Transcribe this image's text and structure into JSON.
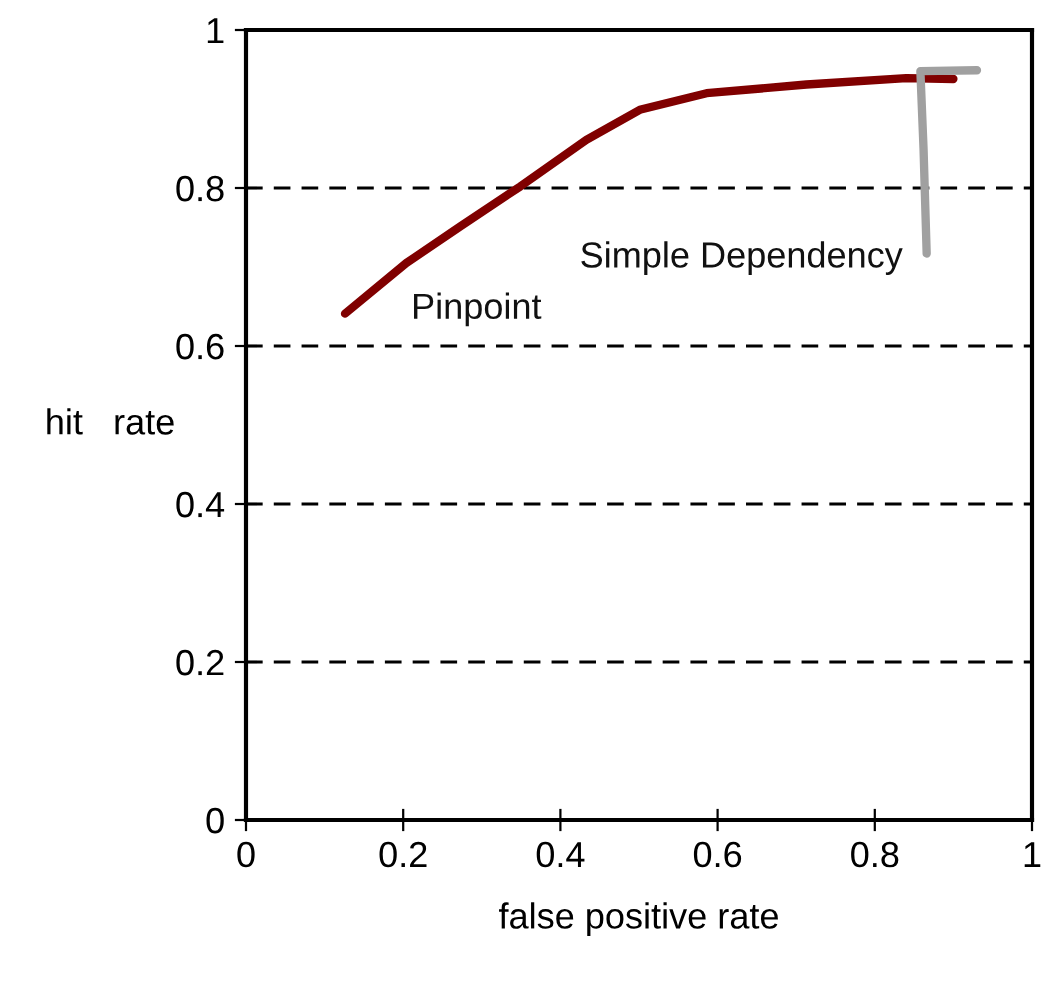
{
  "chart_data": {
    "type": "line",
    "xlabel": "false positive rate",
    "ylabel": "hit   rate",
    "xlim": [
      0,
      1
    ],
    "ylim": [
      0,
      1
    ],
    "xticks": [
      0,
      0.2,
      0.4,
      0.6,
      0.8,
      1
    ],
    "yticks": [
      0,
      0.2,
      0.4,
      0.6,
      0.8,
      1
    ],
    "grid": "y",
    "series": [
      {
        "name": "Pinpoint",
        "color": "#800000",
        "x": [
          0.126,
          0.204,
          0.272,
          0.349,
          0.433,
          0.501,
          0.586,
          0.713,
          0.84,
          0.9
        ],
        "values": [
          0.641,
          0.705,
          0.751,
          0.802,
          0.861,
          0.899,
          0.92,
          0.931,
          0.939,
          0.938
        ]
      },
      {
        "name": "Simple Dependency",
        "color": "#a0a0a0",
        "x": [
          0.93,
          0.858,
          0.862,
          0.866
        ],
        "values": [
          0.949,
          0.948,
          0.85,
          0.717
        ]
      }
    ]
  }
}
